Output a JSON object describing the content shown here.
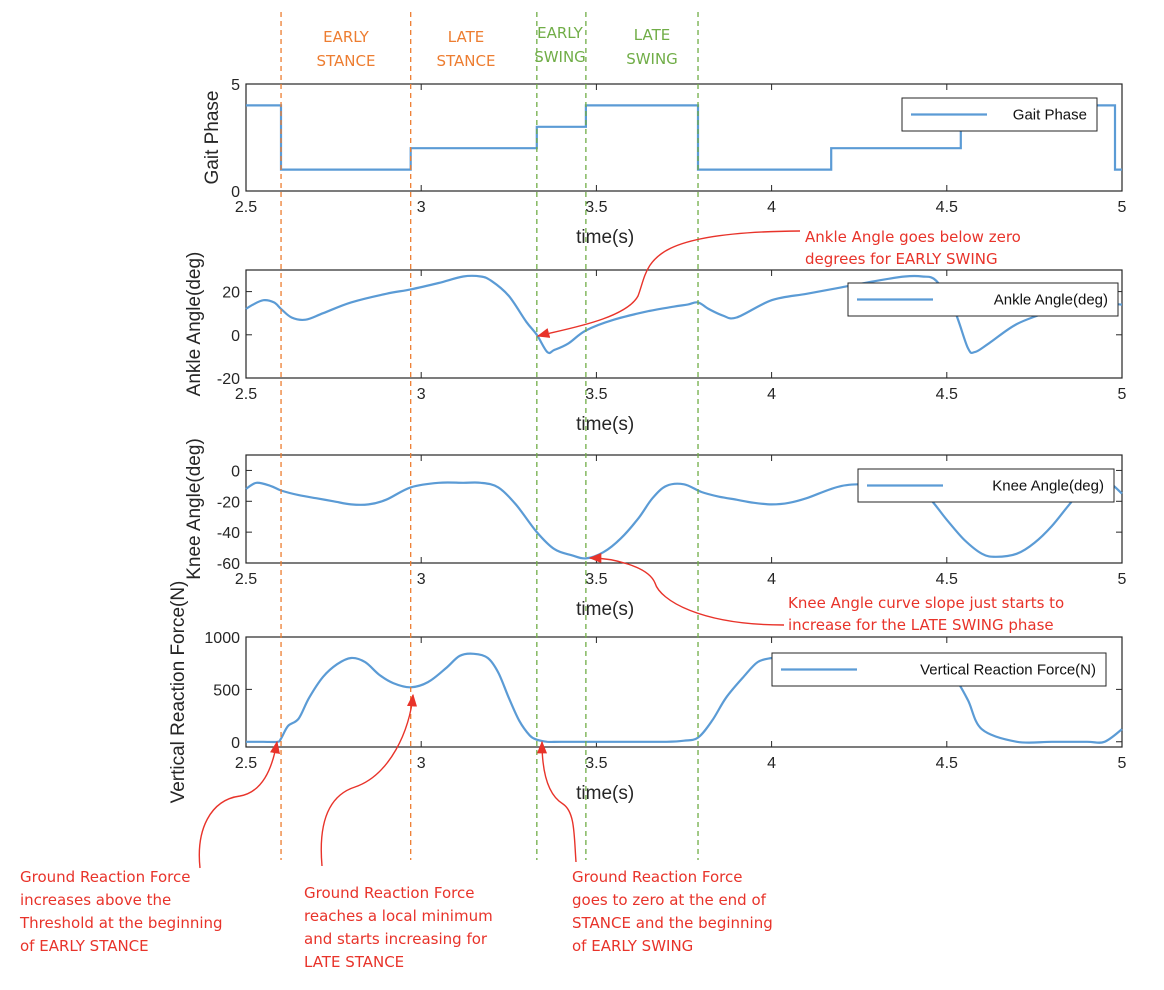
{
  "colors": {
    "series": "#5b9bd5",
    "stance": "#ed7d31",
    "swing": "#70ad47",
    "annotation": "#e8332a",
    "axis": "#262626"
  },
  "phase_labels": [
    {
      "lines": [
        "EARLY",
        "STANCE"
      ],
      "kind": "stance"
    },
    {
      "lines": [
        "LATE",
        "STANCE"
      ],
      "kind": "stance"
    },
    {
      "lines": [
        "EARLY",
        "SWING"
      ],
      "kind": "swing"
    },
    {
      "lines": [
        "LATE",
        "SWING"
      ],
      "kind": "swing"
    }
  ],
  "boundaries": [
    {
      "t": 2.6,
      "kind": "stance"
    },
    {
      "t": 2.97,
      "kind": "stance"
    },
    {
      "t": 3.33,
      "kind": "swing"
    },
    {
      "t": 3.47,
      "kind": "swing"
    },
    {
      "t": 3.79,
      "kind": "swing"
    }
  ],
  "annotations": {
    "ankle": [
      "Ankle Angle goes below zero",
      "degrees for EARLY SWING"
    ],
    "knee": [
      "Knee Angle curve slope just starts to",
      "increase for the LATE SWING phase"
    ],
    "grf_early_stance": [
      "Ground Reaction Force",
      "increases above the",
      "Threshold at the beginning",
      "of EARLY STANCE"
    ],
    "grf_late_stance": [
      "Ground Reaction Force",
      "reaches a local minimum",
      "and starts increasing for",
      "LATE STANCE"
    ],
    "grf_early_swing": [
      "Ground Reaction Force",
      "goes to zero at the end of",
      "STANCE and the beginning",
      "of EARLY SWING"
    ]
  },
  "chart_data": [
    {
      "type": "line",
      "xlabel": "time(s)",
      "ylabel": "Gait Phase",
      "xlim": [
        2.5,
        5
      ],
      "ylim": [
        0,
        5
      ],
      "xticks": [
        2.5,
        3,
        3.5,
        4,
        4.5,
        5
      ],
      "xtick_labels": [
        "2.5",
        "3",
        "3.5",
        "4",
        "4.5",
        "5"
      ],
      "yticks": [
        0,
        5
      ],
      "ytick_labels": [
        "0",
        "5"
      ],
      "legend_position": "top-right",
      "series": [
        {
          "name": "Gait Phase",
          "step": true,
          "x": [
            2.5,
            2.6,
            2.97,
            3.33,
            3.47,
            3.79,
            4.17,
            4.54,
            4.98,
            5.0
          ],
          "y": [
            4,
            1,
            2,
            3,
            4,
            1,
            2,
            4,
            1,
            1
          ]
        }
      ]
    },
    {
      "type": "line",
      "xlabel": "time(s)",
      "ylabel": "Ankle Angle(deg)",
      "xlim": [
        2.5,
        5
      ],
      "ylim": [
        -20,
        30
      ],
      "xticks": [
        2.5,
        3,
        3.5,
        4,
        4.5,
        5
      ],
      "xtick_labels": [
        "2.5",
        "3",
        "3.5",
        "4",
        "4.5",
        "5"
      ],
      "yticks": [
        -20,
        0,
        20
      ],
      "ytick_labels": [
        "-20",
        "0",
        "20"
      ],
      "legend_position": "top-right",
      "series": [
        {
          "name": "Ankle Angle(deg)",
          "x": [
            2.5,
            2.52,
            2.55,
            2.58,
            2.6,
            2.63,
            2.67,
            2.72,
            2.8,
            2.9,
            2.97,
            3.05,
            3.12,
            3.17,
            3.2,
            3.25,
            3.3,
            3.33,
            3.36,
            3.38,
            3.42,
            3.47,
            3.55,
            3.65,
            3.72,
            3.76,
            3.79,
            3.82,
            3.86,
            3.9,
            4.0,
            4.1,
            4.2,
            4.3,
            4.38,
            4.43,
            4.47,
            4.52,
            4.56,
            4.58,
            4.62,
            4.7,
            4.8,
            4.9,
            5.0
          ],
          "y": [
            12,
            14,
            16,
            15,
            12,
            8,
            7,
            10,
            15,
            19,
            21,
            24,
            27,
            27,
            25,
            18,
            6,
            0,
            -8,
            -7,
            -4,
            2,
            7,
            11,
            13,
            14,
            15,
            12,
            9,
            8,
            16,
            19,
            22,
            25,
            27,
            27,
            25,
            12,
            -6,
            -8,
            -4,
            5,
            11,
            15,
            14
          ]
        }
      ]
    },
    {
      "type": "line",
      "xlabel": "time(s)",
      "ylabel": "Knee Angle(deg)",
      "xlim": [
        2.5,
        5
      ],
      "ylim": [
        -60,
        10
      ],
      "xticks": [
        2.5,
        3,
        3.5,
        4,
        4.5,
        5
      ],
      "xtick_labels": [
        "2.5",
        "3",
        "3.5",
        "4",
        "4.5",
        "5"
      ],
      "yticks": [
        -60,
        -40,
        -20,
        0
      ],
      "ytick_labels": [
        "-60",
        "-40",
        "-20",
        "0"
      ],
      "legend_position": "top-right",
      "series": [
        {
          "name": "Knee Angle(deg)",
          "x": [
            2.5,
            2.53,
            2.57,
            2.6,
            2.65,
            2.7,
            2.75,
            2.8,
            2.85,
            2.9,
            2.97,
            3.05,
            3.12,
            3.17,
            3.22,
            3.27,
            3.33,
            3.38,
            3.43,
            3.47,
            3.52,
            3.57,
            3.62,
            3.66,
            3.7,
            3.75,
            3.8,
            3.85,
            3.9,
            3.95,
            4.0,
            4.05,
            4.1,
            4.2,
            4.3,
            4.4,
            4.45,
            4.5,
            4.55,
            4.6,
            4.64,
            4.7,
            4.75,
            4.8,
            4.85,
            4.9,
            4.95,
            5.0
          ],
          "y": [
            -12,
            -8,
            -10,
            -13,
            -16,
            -18,
            -20,
            -22,
            -22,
            -19,
            -11,
            -8,
            -8,
            -8,
            -11,
            -22,
            -40,
            -51,
            -55,
            -57,
            -53,
            -44,
            -31,
            -18,
            -10,
            -9,
            -14,
            -17,
            -19,
            -21,
            -22,
            -21,
            -18,
            -10,
            -9,
            -10,
            -18,
            -32,
            -45,
            -54,
            -56,
            -54,
            -47,
            -36,
            -22,
            -9,
            -6,
            -15
          ]
        }
      ]
    },
    {
      "type": "line",
      "xlabel": "time(s)",
      "ylabel": "Vertical Reaction Force(N)",
      "xlim": [
        2.5,
        5
      ],
      "ylim": [
        -50,
        1000
      ],
      "xticks": [
        2.5,
        3,
        3.5,
        4,
        4.5,
        5
      ],
      "xtick_labels": [
        "2.5",
        "3",
        "3.5",
        "4",
        "4.5",
        "5"
      ],
      "yticks": [
        0,
        500,
        1000
      ],
      "ytick_labels": [
        "0",
        "500",
        "1000"
      ],
      "legend_position": "top-right",
      "series": [
        {
          "name": "Vertical Reaction Force(N)",
          "x": [
            2.5,
            2.55,
            2.59,
            2.6,
            2.62,
            2.65,
            2.68,
            2.72,
            2.76,
            2.8,
            2.84,
            2.88,
            2.92,
            2.97,
            3.02,
            3.07,
            3.11,
            3.15,
            3.19,
            3.22,
            3.25,
            3.28,
            3.31,
            3.33,
            3.36,
            3.4,
            3.5,
            3.6,
            3.7,
            3.75,
            3.79,
            3.83,
            3.87,
            3.92,
            3.96,
            4.0,
            4.05,
            4.1,
            4.15,
            4.2,
            4.25,
            4.3,
            4.38,
            4.43,
            4.48,
            4.52,
            4.56,
            4.6,
            4.7,
            4.8,
            4.9,
            4.95,
            5.0
          ],
          "y": [
            0,
            0,
            0,
            30,
            150,
            220,
            420,
            620,
            740,
            800,
            760,
            640,
            560,
            520,
            570,
            700,
            820,
            840,
            800,
            660,
            420,
            200,
            60,
            20,
            0,
            0,
            0,
            0,
            0,
            10,
            40,
            200,
            420,
            620,
            760,
            800,
            820,
            820,
            810,
            800,
            780,
            770,
            760,
            740,
            700,
            620,
            400,
            120,
            0,
            0,
            0,
            0,
            120
          ]
        }
      ]
    }
  ]
}
